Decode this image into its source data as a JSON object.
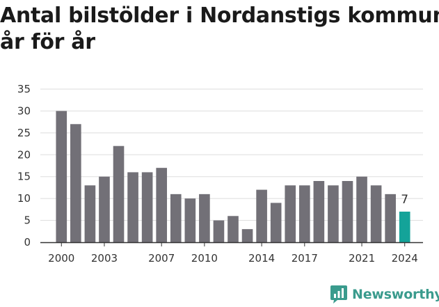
{
  "title": {
    "line1": "Antal bilstölder i Nordanstigs kommun",
    "line2": "år för år"
  },
  "brand": {
    "name": "Newsworthy",
    "icon": "newsworthy-logo-icon"
  },
  "colors": {
    "bar": "#727077",
    "highlight": "#14a399",
    "grid": "#dddddd",
    "axis": "#333333",
    "brand": "#3a9b8d"
  },
  "chart_data": {
    "type": "bar",
    "title": "Antal bilstölder i Nordanstigs kommun år för år",
    "x": [
      2000,
      2001,
      2002,
      2003,
      2004,
      2005,
      2006,
      2007,
      2008,
      2009,
      2010,
      2011,
      2012,
      2013,
      2014,
      2015,
      2016,
      2017,
      2018,
      2019,
      2020,
      2021,
      2022,
      2023,
      2024
    ],
    "values": [
      30,
      27,
      13,
      15,
      22,
      16,
      16,
      17,
      11,
      10,
      11,
      5,
      6,
      3,
      12,
      9,
      13,
      13,
      14,
      13,
      14,
      15,
      13,
      11,
      7
    ],
    "x_tick_labels": [
      "2000",
      "2003",
      "2007",
      "2010",
      "2014",
      "2017",
      "2021",
      "2024"
    ],
    "y_ticks": [
      0,
      5,
      10,
      15,
      20,
      25,
      30,
      35
    ],
    "ylim": [
      0,
      35
    ],
    "grid": true,
    "highlight_index": 24,
    "annotations": [
      {
        "x": 2024,
        "text": "7"
      }
    ],
    "xlabel": "",
    "ylabel": ""
  }
}
